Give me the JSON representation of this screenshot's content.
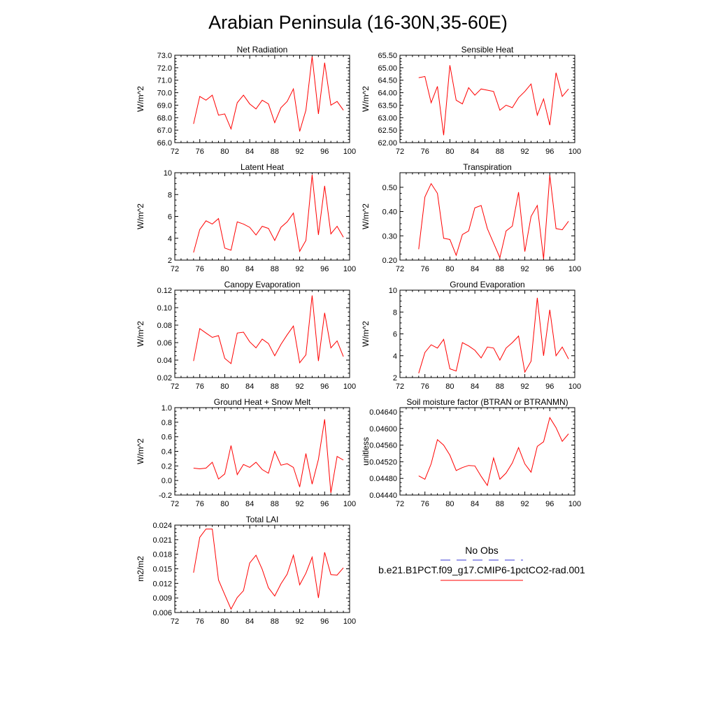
{
  "figure": {
    "title": "Arabian Peninsula (16-30N,35-60E)"
  },
  "legend": {
    "entries": [
      {
        "label": "No Obs",
        "color": "#3b3bd6",
        "dash": true
      },
      {
        "label": "b.e21.B1PCT.f09_g17.CMIP6-1pctCO2-rad.001",
        "color": "#ff0000",
        "dash": false
      }
    ]
  },
  "chart_data": [
    {
      "type": "line",
      "title": "Net Radiation",
      "ylabel": "W/m^2",
      "xlim": [
        72,
        100
      ],
      "xticks": [
        72,
        76,
        80,
        84,
        88,
        92,
        96,
        100
      ],
      "ylim": [
        66.0,
        73.0
      ],
      "yticks": [
        "66.0",
        "67.0",
        "68.0",
        "69.0",
        "70.0",
        "71.0",
        "72.0",
        "73.0"
      ],
      "series": [
        {
          "color": "#ff0000",
          "x": [
            75,
            76,
            77,
            78,
            79,
            80,
            81,
            82,
            83,
            84,
            85,
            86,
            87,
            88,
            89,
            90,
            91,
            92,
            93,
            94,
            95,
            96,
            97,
            98,
            99
          ],
          "y": [
            67.5,
            69.7,
            69.4,
            69.8,
            68.2,
            68.3,
            67.1,
            69.2,
            69.8,
            69.1,
            68.7,
            69.4,
            69.1,
            67.6,
            68.8,
            69.3,
            70.3,
            66.9,
            68.6,
            72.9,
            68.3,
            72.4,
            69.0,
            69.3,
            68.6
          ]
        }
      ]
    },
    {
      "type": "line",
      "title": "Sensible Heat",
      "ylabel": "W/m^2",
      "xlim": [
        72,
        100
      ],
      "xticks": [
        72,
        76,
        80,
        84,
        88,
        92,
        96,
        100
      ],
      "ylim": [
        62.0,
        65.5
      ],
      "yticks": [
        "62.00",
        "62.50",
        "63.00",
        "63.50",
        "64.00",
        "64.50",
        "65.00",
        "65.50"
      ],
      "series": [
        {
          "color": "#ff0000",
          "x": [
            75,
            76,
            77,
            78,
            79,
            80,
            81,
            82,
            83,
            84,
            85,
            86,
            87,
            88,
            89,
            90,
            91,
            92,
            93,
            94,
            95,
            96,
            97,
            98,
            99
          ],
          "y": [
            64.6,
            64.65,
            63.6,
            64.25,
            62.3,
            65.1,
            63.7,
            63.55,
            64.2,
            63.9,
            64.15,
            64.1,
            64.05,
            63.3,
            63.5,
            63.4,
            63.8,
            64.05,
            64.35,
            63.1,
            63.75,
            62.7,
            64.8,
            63.85,
            64.15
          ]
        }
      ]
    },
    {
      "type": "line",
      "title": "Latent Heat",
      "ylabel": "W/m^2",
      "xlim": [
        72,
        100
      ],
      "xticks": [
        72,
        76,
        80,
        84,
        88,
        92,
        96,
        100
      ],
      "ylim": [
        2,
        10
      ],
      "yticks": [
        "2",
        "4",
        "6",
        "8",
        "10"
      ],
      "series": [
        {
          "color": "#ff0000",
          "x": [
            75,
            76,
            77,
            78,
            79,
            80,
            81,
            82,
            83,
            84,
            85,
            86,
            87,
            88,
            89,
            90,
            91,
            92,
            93,
            94,
            95,
            96,
            97,
            98,
            99
          ],
          "y": [
            2.7,
            4.8,
            5.6,
            5.3,
            5.8,
            3.1,
            2.9,
            5.5,
            5.3,
            5.0,
            4.3,
            5.1,
            4.9,
            3.8,
            5.0,
            5.5,
            6.3,
            2.8,
            3.8,
            9.8,
            4.3,
            8.8,
            4.4,
            5.1,
            4.1
          ]
        }
      ]
    },
    {
      "type": "line",
      "title": "Transpiration",
      "ylabel": "W/m^2",
      "xlim": [
        72,
        100
      ],
      "xticks": [
        72,
        76,
        80,
        84,
        88,
        92,
        96,
        100
      ],
      "ylim": [
        0.2,
        0.56
      ],
      "yticks": [
        "0.20",
        "0.30",
        "0.40",
        "0.50"
      ],
      "series": [
        {
          "color": "#ff0000",
          "x": [
            75,
            76,
            77,
            78,
            79,
            80,
            81,
            82,
            83,
            84,
            85,
            86,
            87,
            88,
            89,
            90,
            91,
            92,
            93,
            94,
            95,
            96,
            97,
            98,
            99
          ],
          "y": [
            0.245,
            0.46,
            0.515,
            0.475,
            0.29,
            0.285,
            0.22,
            0.305,
            0.32,
            0.415,
            0.425,
            0.33,
            0.27,
            0.21,
            0.32,
            0.34,
            0.48,
            0.235,
            0.38,
            0.425,
            0.205,
            0.55,
            0.33,
            0.325,
            0.36
          ]
        }
      ]
    },
    {
      "type": "line",
      "title": "Canopy Evaporation",
      "ylabel": "W/m^2",
      "xlim": [
        72,
        100
      ],
      "xticks": [
        72,
        76,
        80,
        84,
        88,
        92,
        96,
        100
      ],
      "ylim": [
        0.02,
        0.12
      ],
      "yticks": [
        "0.02",
        "0.04",
        "0.06",
        "0.08",
        "0.10",
        "0.12"
      ],
      "series": [
        {
          "color": "#ff0000",
          "x": [
            75,
            76,
            77,
            78,
            79,
            80,
            81,
            82,
            83,
            84,
            85,
            86,
            87,
            88,
            89,
            90,
            91,
            92,
            93,
            94,
            95,
            96,
            97,
            98,
            99
          ],
          "y": [
            0.039,
            0.076,
            0.071,
            0.066,
            0.068,
            0.042,
            0.036,
            0.071,
            0.072,
            0.061,
            0.054,
            0.064,
            0.059,
            0.045,
            0.058,
            0.069,
            0.079,
            0.037,
            0.046,
            0.114,
            0.039,
            0.094,
            0.054,
            0.062,
            0.044
          ]
        }
      ]
    },
    {
      "type": "line",
      "title": "Ground Evaporation",
      "ylabel": "W/m^2",
      "xlim": [
        72,
        100
      ],
      "xticks": [
        72,
        76,
        80,
        84,
        88,
        92,
        96,
        100
      ],
      "ylim": [
        2,
        10
      ],
      "yticks": [
        "2",
        "4",
        "6",
        "8",
        "10"
      ],
      "series": [
        {
          "color": "#ff0000",
          "x": [
            75,
            76,
            77,
            78,
            79,
            80,
            81,
            82,
            83,
            84,
            85,
            86,
            87,
            88,
            89,
            90,
            91,
            92,
            93,
            94,
            95,
            96,
            97,
            98,
            99
          ],
          "y": [
            2.4,
            4.3,
            5.0,
            4.7,
            5.5,
            2.8,
            2.6,
            5.2,
            4.9,
            4.5,
            3.8,
            4.8,
            4.7,
            3.6,
            4.7,
            5.2,
            5.8,
            2.5,
            3.5,
            9.3,
            4.0,
            8.2,
            4.0,
            4.8,
            3.7
          ]
        }
      ]
    },
    {
      "type": "line",
      "title": "Ground Heat + Snow Melt",
      "ylabel": "W/m^2",
      "xlim": [
        72,
        100
      ],
      "xticks": [
        72,
        76,
        80,
        84,
        88,
        92,
        96,
        100
      ],
      "ylim": [
        -0.2,
        1.0
      ],
      "yticks": [
        "-0.2",
        "0.0",
        "0.2",
        "0.4",
        "0.6",
        "0.8",
        "1.0"
      ],
      "series": [
        {
          "color": "#ff0000",
          "x": [
            75,
            76,
            77,
            78,
            79,
            80,
            81,
            82,
            83,
            84,
            85,
            86,
            87,
            88,
            89,
            90,
            91,
            92,
            93,
            94,
            95,
            96,
            97,
            98,
            99
          ],
          "y": [
            0.17,
            0.16,
            0.17,
            0.25,
            0.02,
            0.09,
            0.48,
            0.08,
            0.22,
            0.18,
            0.25,
            0.15,
            0.1,
            0.4,
            0.21,
            0.23,
            0.18,
            -0.09,
            0.37,
            -0.05,
            0.29,
            0.84,
            -0.17,
            0.33,
            0.28
          ]
        }
      ]
    },
    {
      "type": "line",
      "title": "Soil moisture factor (BTRAN or BTRANMN)",
      "ylabel": "unitless",
      "xlim": [
        72,
        100
      ],
      "xticks": [
        72,
        76,
        80,
        84,
        88,
        92,
        96,
        100
      ],
      "ylim": [
        0.0444,
        0.0465
      ],
      "yticks": [
        "0.04440",
        "0.04480",
        "0.04520",
        "0.04560",
        "0.04600",
        "0.04640"
      ],
      "series": [
        {
          "color": "#ff0000",
          "x": [
            75,
            76,
            77,
            78,
            79,
            80,
            81,
            82,
            83,
            84,
            85,
            86,
            87,
            88,
            89,
            90,
            91,
            92,
            93,
            94,
            95,
            96,
            97,
            98,
            99
          ],
          "y": [
            0.04486,
            0.04478,
            0.04515,
            0.04573,
            0.0456,
            0.04536,
            0.04499,
            0.04506,
            0.04511,
            0.0451,
            0.04485,
            0.04463,
            0.04529,
            0.04478,
            0.04493,
            0.04517,
            0.04554,
            0.04515,
            0.04495,
            0.04557,
            0.04568,
            0.04626,
            0.04602,
            0.04569,
            0.04587
          ]
        }
      ]
    },
    {
      "type": "line",
      "title": "Total LAI",
      "ylabel": "m2/m2",
      "xlim": [
        72,
        100
      ],
      "xticks": [
        72,
        76,
        80,
        84,
        88,
        92,
        96,
        100
      ],
      "ylim": [
        0.006,
        0.024
      ],
      "yticks": [
        "0.006",
        "0.009",
        "0.012",
        "0.015",
        "0.018",
        "0.021",
        "0.024"
      ],
      "series": [
        {
          "color": "#ff0000",
          "x": [
            75,
            76,
            77,
            78,
            79,
            80,
            81,
            82,
            83,
            84,
            85,
            86,
            87,
            88,
            89,
            90,
            91,
            92,
            93,
            94,
            95,
            96,
            97,
            98,
            99
          ],
          "y": [
            0.0142,
            0.0215,
            0.0232,
            0.0232,
            0.0127,
            0.0097,
            0.0067,
            0.0091,
            0.0105,
            0.0162,
            0.0178,
            0.0149,
            0.0111,
            0.0094,
            0.0119,
            0.0139,
            0.0178,
            0.0117,
            0.0141,
            0.0174,
            0.009,
            0.0184,
            0.0138,
            0.0137,
            0.0152
          ]
        }
      ]
    }
  ]
}
